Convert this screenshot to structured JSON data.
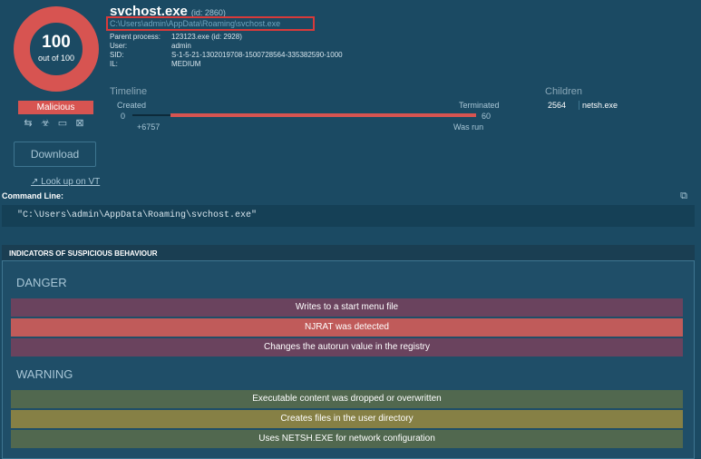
{
  "score": {
    "value": "100",
    "sub": "out of 100",
    "ring_color": "#d75451"
  },
  "verdict": "Malicious",
  "icons": [
    "arrows-icon",
    "biohazard-icon",
    "monitor-icon",
    "network-shield-icon"
  ],
  "download_label": "Download",
  "vt_link": "Look up on VT",
  "process": {
    "name": "svchost.exe",
    "id": "(id: 2860)",
    "path": "C:\\Users\\admin\\AppData\\Roaming\\svchost.exe",
    "meta": [
      {
        "key": "Parent process:",
        "value": "123123.exe",
        "extra": "(id: 2928)"
      },
      {
        "key": "User:",
        "value": "admin",
        "extra": ""
      },
      {
        "key": "SID:",
        "value": "S-1-5-21-1302019708-1500728564-335382590-1000",
        "extra": ""
      },
      {
        "key": "IL:",
        "value": "MEDIUM",
        "extra": ""
      }
    ]
  },
  "timeline": {
    "title": "Timeline",
    "created_label": "Created",
    "created_value": "0",
    "offset": "+6757",
    "terminated_label": "Terminated",
    "terminated_value": "60",
    "run_label": "Was run"
  },
  "children": {
    "title": "Children",
    "pid": "2564",
    "name": "netsh.exe"
  },
  "command_line": {
    "label": "Command Line:",
    "value": "\"C:\\Users\\admin\\AppData\\Roaming\\svchost.exe\""
  },
  "indicators": {
    "title": "INDICATORS OF SUSPICIOUS BEHAVIOUR",
    "danger_title": "DANGER",
    "danger": [
      "Writes to a start menu file",
      "NJRAT was detected",
      "Changes the autorun value in the registry"
    ],
    "warning_title": "WARNING",
    "warning": [
      "Executable content was dropped or overwritten",
      "Creates files in the user directory",
      "Uses NETSH.EXE for network configuration"
    ]
  }
}
